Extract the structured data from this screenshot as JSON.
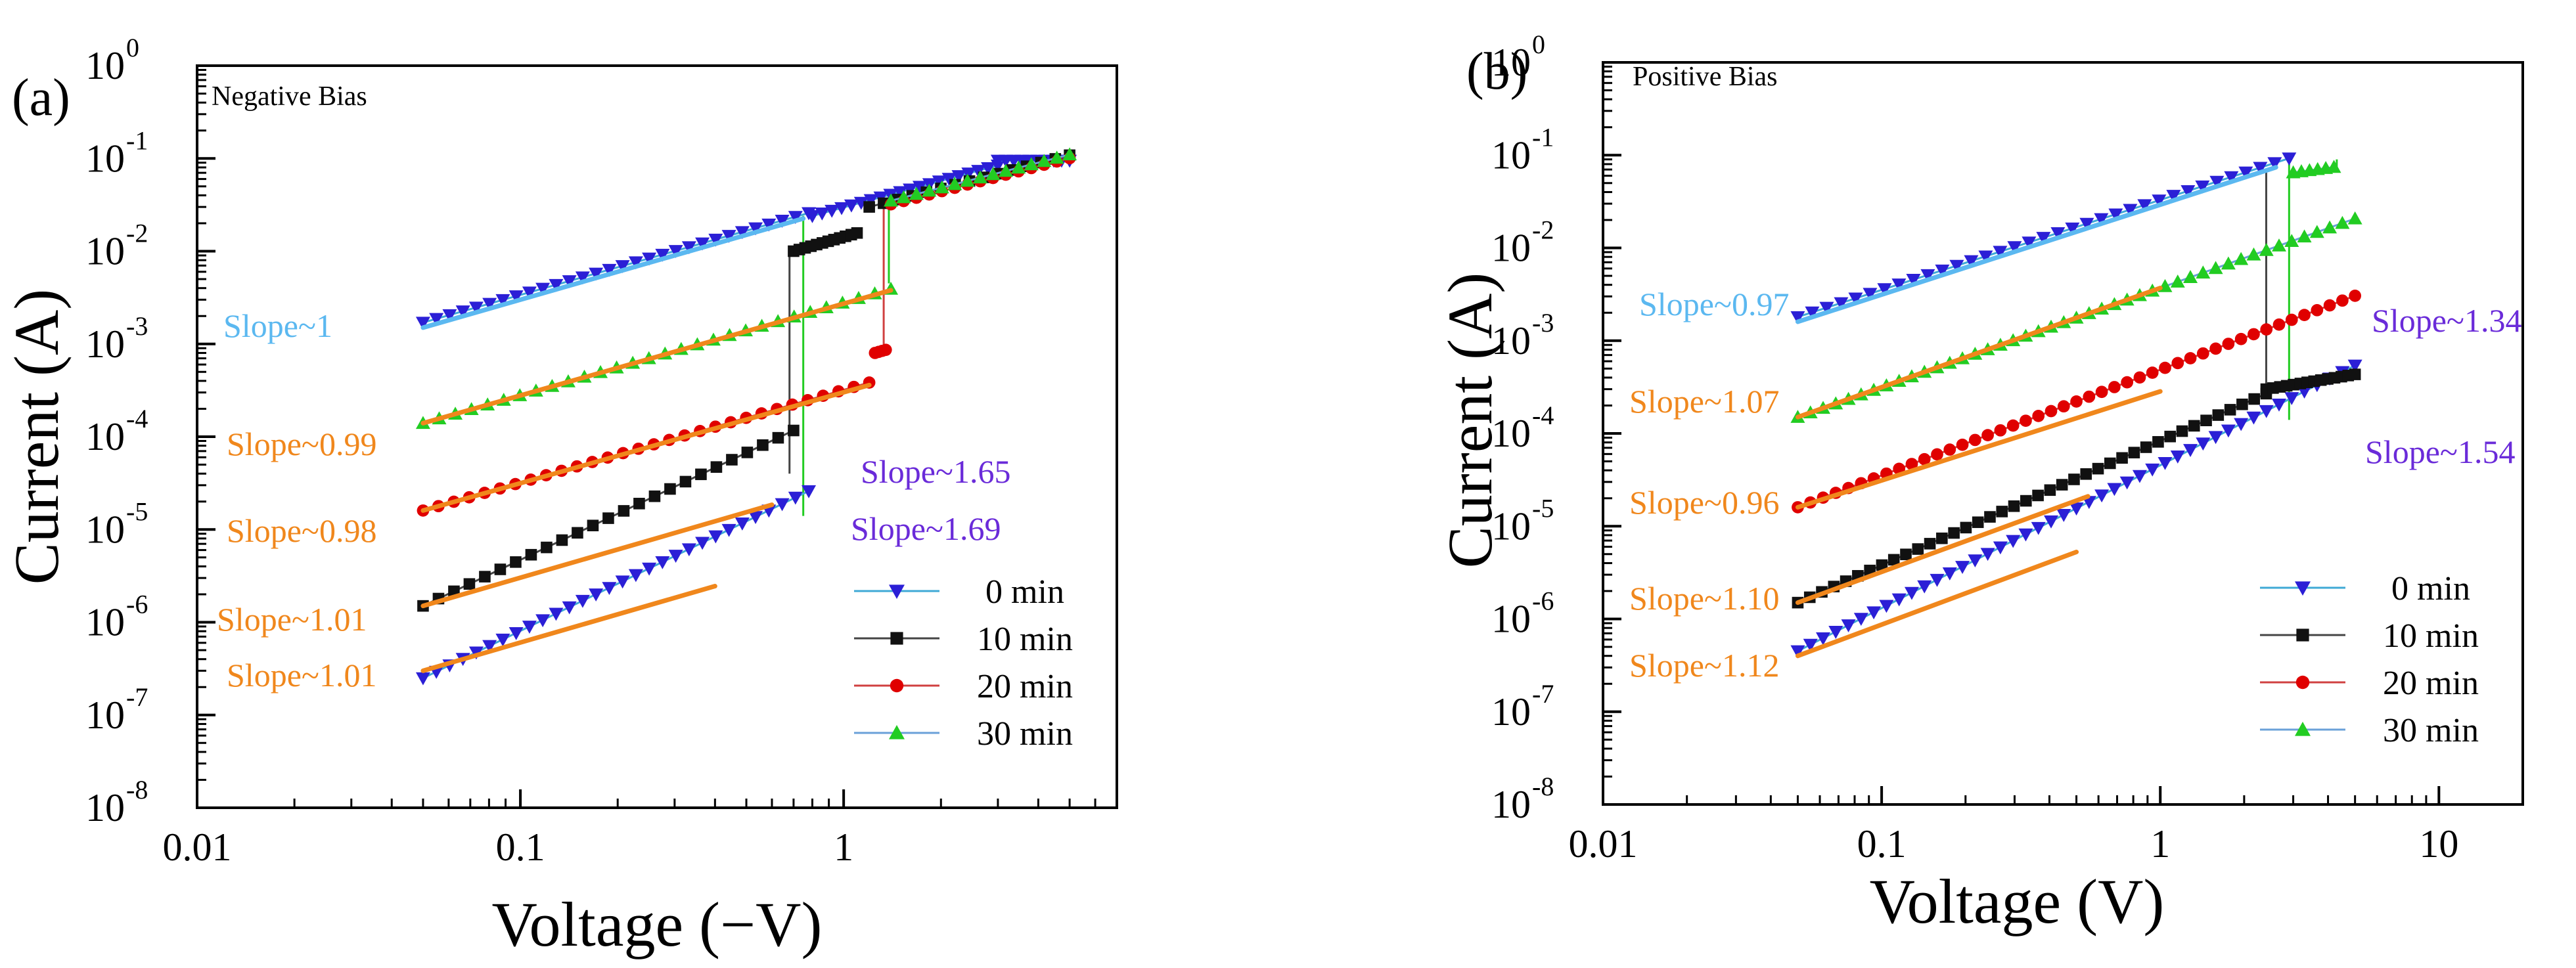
{
  "figure": {
    "panel_labels": [
      "(a)",
      "(b)"
    ],
    "series_colors": {
      "0 min": "#2b1fd6",
      "10 min": "#111111",
      "20 min": "#e00000",
      "30 min": "#22cc22"
    },
    "line_colors": {
      "0 min": "#3fa9d6",
      "10 min": "#444444",
      "20 min": "#d04040",
      "30 min": "#6aa0d8"
    },
    "fit_colors": {
      "orange": "#f0871c",
      "light_blue": "#5bb8f0",
      "purple": "#7a2ee0",
      "violet": "#6a2bd9"
    }
  },
  "chart_data": [
    {
      "type": "scatter",
      "panel": "(a)",
      "title": "Negative Bias",
      "xlabel": "Voltage (−V)",
      "ylabel": "Current (A)",
      "xscale": "log",
      "yscale": "log",
      "xlim": [
        0.01,
        7
      ],
      "ylim": [
        1e-08,
        1
      ],
      "x_ticks": [
        "0.01",
        "0.1",
        "1"
      ],
      "y_tick_exponents": [
        "0",
        "-1",
        "-2",
        "-3",
        "-4",
        "-5",
        "-6",
        "-7",
        "-8"
      ],
      "legend": [
        "0 min",
        "10 min",
        "20 min",
        "30 min"
      ],
      "legend_position": "bottom-right",
      "series": [
        {
          "name": "0 min",
          "marker": "triangle-down",
          "segments": [
            {
              "x0": 0.05,
              "x1": 0.78,
              "y0": 2.5e-07,
              "k": 1.69,
              "n": 30
            },
            {
              "x0": 0.05,
              "x1": 0.78,
              "y0": 0.0017,
              "k": 0.99,
              "n": 30
            },
            {
              "x0": 0.8,
              "x1": 3.0,
              "y0": 0.024,
              "k": 0.95,
              "n": 20
            },
            {
              "x0": 3.0,
              "x1": 5.0,
              "y0": 0.095,
              "k": 0,
              "n": 10
            }
          ]
        },
        {
          "name": "10 min",
          "marker": "square",
          "segments": [
            {
              "x0": 0.05,
              "x1": 0.7,
              "y0": 1.5e-06,
              "k": 1.65,
              "n": 25
            },
            {
              "x0": 0.7,
              "x1": 1.1,
              "y0": 0.01,
              "k": 1.0,
              "n": 12
            },
            {
              "x0": 1.2,
              "x1": 5.0,
              "y0": 0.03,
              "k": 0.9,
              "n": 15
            }
          ]
        },
        {
          "name": "20 min",
          "marker": "circle",
          "segments": [
            {
              "x0": 0.05,
              "x1": 1.2,
              "y0": 1.6e-05,
              "k": 1.0,
              "n": 30
            },
            {
              "x0": 1.25,
              "x1": 1.35,
              "y0": 0.0008,
              "k": 1.0,
              "n": 4
            },
            {
              "x0": 1.4,
              "x1": 5.0,
              "y0": 0.032,
              "k": 0.9,
              "n": 15
            }
          ]
        },
        {
          "name": "30 min",
          "marker": "triangle-up",
          "segments": [
            {
              "x0": 0.05,
              "x1": 1.4,
              "y0": 0.00014,
              "k": 1.0,
              "n": 30
            },
            {
              "x0": 0.05,
              "x1": 0.78,
              "y0": 0.0015,
              "k": 0.99,
              "n": 0
            },
            {
              "x0": 1.4,
              "x1": 5.0,
              "y0": 0.035,
              "k": 0.9,
              "n": 15
            }
          ]
        }
      ],
      "jumps": [
        {
          "color": "#22cc22",
          "x": 0.75,
          "y_from": 1.4e-05,
          "y_to": 0.024
        },
        {
          "color": "#444444",
          "x": 0.68,
          "y_from": 4e-05,
          "y_to": 0.01
        },
        {
          "color": "#22cc22",
          "x": 1.38,
          "y_from": 0.0045,
          "y_to": 0.035
        },
        {
          "color": "#d04040",
          "x": 1.33,
          "y_from": 0.0009,
          "y_to": 0.03
        }
      ],
      "fits": [
        {
          "label": "Slope~1",
          "color": "light_blue",
          "x0": 0.05,
          "x1": 0.75,
          "y0": 0.0015,
          "k": 1.0
        },
        {
          "label": "Slope~0.99",
          "color": "orange",
          "x0": 0.05,
          "x1": 1.4,
          "y0": 0.00014,
          "k": 0.99
        },
        {
          "label": "Slope~0.98",
          "color": "orange",
          "x0": 0.05,
          "x1": 1.2,
          "y0": 1.6e-05,
          "k": 0.98
        },
        {
          "label": "Slope~1.01",
          "color": "orange",
          "x0": 0.05,
          "x1": 0.6,
          "y0": 1.5e-06,
          "k": 1.01
        },
        {
          "label": "Slope~1.01",
          "color": "orange",
          "x0": 0.05,
          "x1": 0.4,
          "y0": 3e-07,
          "k": 1.01
        }
      ],
      "annotations": [
        {
          "text": "Slope~1.65",
          "color": "violet",
          "pos": "right-upper"
        },
        {
          "text": "Slope~1.69",
          "color": "violet",
          "pos": "right-lower"
        }
      ]
    },
    {
      "type": "scatter",
      "panel": "(b)",
      "title": "Positive Bias",
      "xlabel": "Voltage (V)",
      "ylabel": "Current (A)",
      "xscale": "log",
      "yscale": "log",
      "xlim": [
        0.01,
        20
      ],
      "ylim": [
        1e-08,
        1
      ],
      "x_ticks": [
        "0.01",
        "0.1",
        "1",
        "10"
      ],
      "y_tick_exponents": [
        "0",
        "-1",
        "-2",
        "-3",
        "-4",
        "-5",
        "-6",
        "-7",
        "-8"
      ],
      "legend": [
        "0 min",
        "10 min",
        "20 min",
        "30 min"
      ],
      "legend_position": "bottom-right",
      "series": [
        {
          "name": "0 min",
          "marker": "triangle-down",
          "segments": [
            {
              "x0": 0.05,
              "x1": 5.0,
              "y0": 4.5e-07,
              "k": 1.54,
              "n": 45
            },
            {
              "x0": 0.05,
              "x1": 2.9,
              "y0": 0.0018,
              "k": 0.97,
              "n": 35
            }
          ]
        },
        {
          "name": "10 min",
          "marker": "square",
          "segments": [
            {
              "x0": 0.05,
              "x1": 2.4,
              "y0": 1.5e-06,
              "k": 1.34,
              "n": 40
            },
            {
              "x0": 2.4,
              "x1": 5.0,
              "y0": 0.0003,
              "k": 0.5,
              "n": 14
            },
            {
              "x0": 0.05,
              "x1": 2.4,
              "y0": 0.0018,
              "k": 0.97,
              "n": 0
            }
          ]
        },
        {
          "name": "20 min",
          "marker": "circle",
          "segments": [
            {
              "x0": 0.05,
              "x1": 5.0,
              "y0": 1.6e-05,
              "k": 1.14,
              "n": 45
            }
          ]
        },
        {
          "name": "30 min",
          "marker": "triangle-up",
          "segments": [
            {
              "x0": 0.05,
              "x1": 5.0,
              "y0": 0.00015,
              "k": 1.07,
              "n": 45
            },
            {
              "x0": 0.05,
              "x1": 4.0,
              "y0": 0.0015,
              "k": 0.97,
              "n": 0
            },
            {
              "x0": 3.0,
              "x1": 4.2,
              "y0": 0.065,
              "k": 0.4,
              "n": 6
            }
          ]
        }
      ],
      "jumps": [
        {
          "color": "#444444",
          "x": 2.4,
          "y_from": 0.0003,
          "y_to": 0.065
        },
        {
          "color": "#22cc22",
          "x": 2.9,
          "y_from": 0.00014,
          "y_to": 0.08
        },
        {
          "color": "#22cc22",
          "x": 4.3,
          "y_from": 0.065,
          "y_to": 0.09
        }
      ],
      "fits": [
        {
          "label": "Slope~0.97",
          "color": "light_blue",
          "x0": 0.05,
          "x1": 2.6,
          "y0": 0.0016,
          "k": 0.97
        },
        {
          "label": "Slope~1.07",
          "color": "orange",
          "x0": 0.05,
          "x1": 1.0,
          "y0": 0.00015,
          "k": 1.07
        },
        {
          "label": "Slope~0.96",
          "color": "orange",
          "x0": 0.05,
          "x1": 1.0,
          "y0": 1.6e-05,
          "k": 0.96
        },
        {
          "label": "Slope~1.10",
          "color": "orange",
          "x0": 0.05,
          "x1": 0.55,
          "y0": 1.5e-06,
          "k": 1.1
        },
        {
          "label": "Slope~1.12",
          "color": "orange",
          "x0": 0.05,
          "x1": 0.5,
          "y0": 4e-07,
          "k": 1.12
        }
      ],
      "annotations": [
        {
          "text": "Slope~1.34",
          "color": "violet",
          "pos": "right-upper"
        },
        {
          "text": "Slope~1.54",
          "color": "violet",
          "pos": "right-lower"
        }
      ]
    }
  ]
}
